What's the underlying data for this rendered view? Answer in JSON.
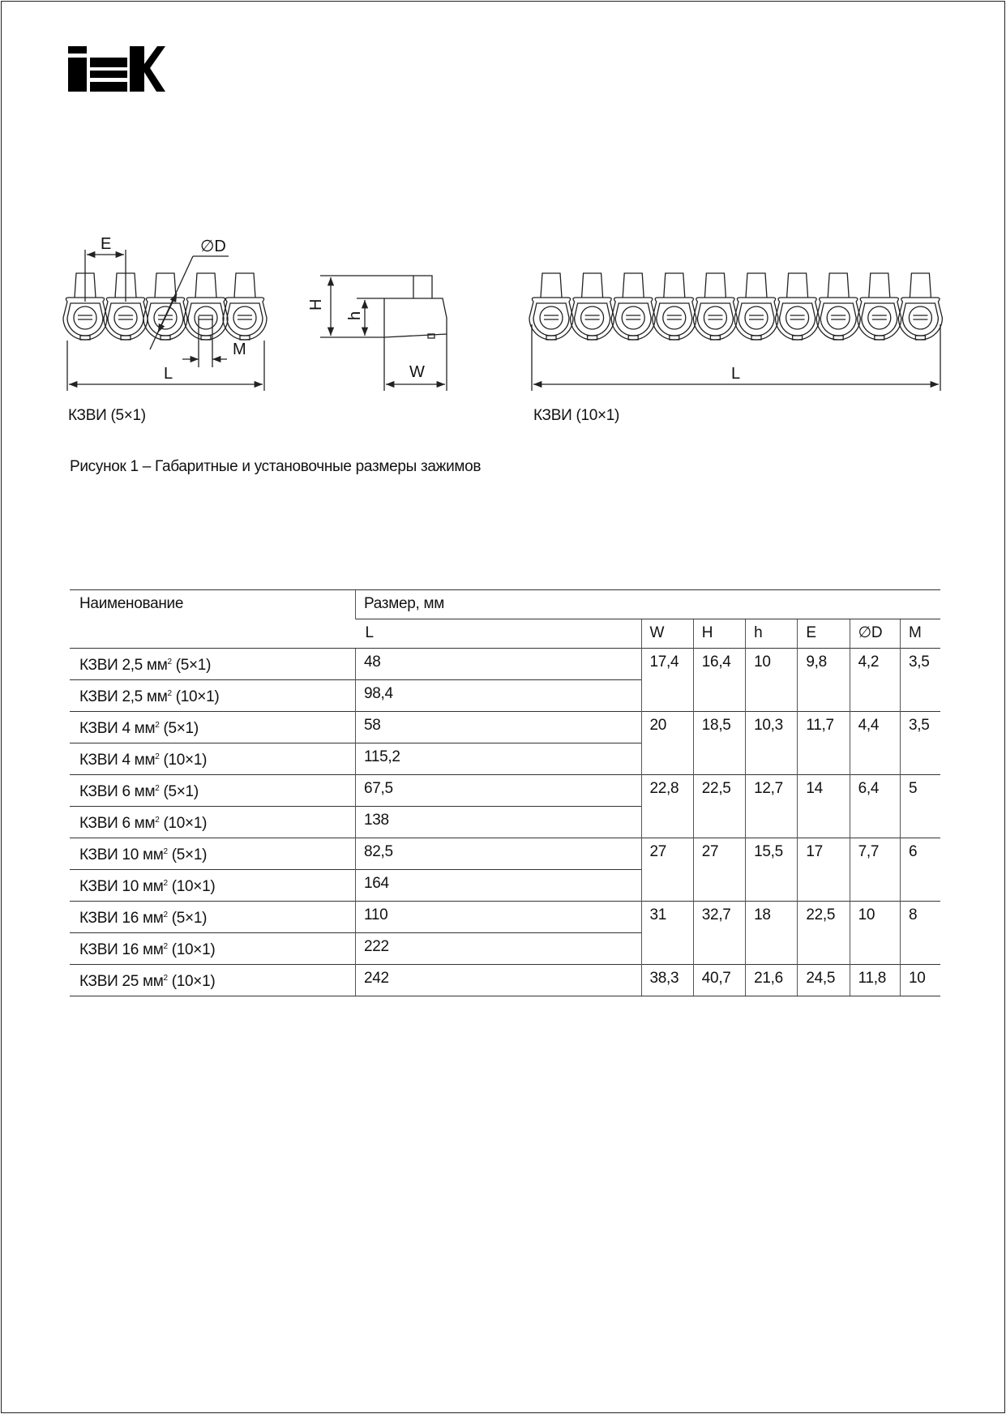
{
  "logo": {
    "text": "IEK"
  },
  "figure": {
    "labels": {
      "E": "E",
      "D": "∅D",
      "L": "L",
      "M": "M",
      "H": "H",
      "h": "h",
      "W": "W"
    },
    "left_label": "КЗВИ (5×1)",
    "right_label": "КЗВИ (10×1)",
    "caption": "Рисунок 1 – Габаритные и установочные размеры зажимов"
  },
  "table": {
    "header_name": "Наименование",
    "header_size": "Размер, мм",
    "columns": [
      "L",
      "W",
      "H",
      "h",
      "E",
      "∅D",
      "M"
    ],
    "rows": [
      {
        "name": "КЗВИ 2,5 мм",
        "sup": "2",
        "suffix": " (5×1)",
        "L": "48",
        "W": "17,4",
        "H": "16,4",
        "h": "10",
        "E": "9,8",
        "D": "4,2",
        "M": "3,5"
      },
      {
        "name": "КЗВИ 2,5 мм",
        "sup": "2",
        "suffix": " (10×1)",
        "L": "98,4"
      },
      {
        "name": "КЗВИ 4 мм",
        "sup": "2",
        "suffix": " (5×1)",
        "L": "58",
        "W": "20",
        "H": "18,5",
        "h": "10,3",
        "E": "11,7",
        "D": "4,4",
        "M": "3,5"
      },
      {
        "name": "КЗВИ 4 мм",
        "sup": "2",
        "suffix": " (10×1)",
        "L": "115,2"
      },
      {
        "name": "КЗВИ 6 мм",
        "sup": "2",
        "suffix": " (5×1)",
        "L": "67,5",
        "W": "22,8",
        "H": "22,5",
        "h": "12,7",
        "E": "14",
        "D": "6,4",
        "M": "5"
      },
      {
        "name": "КЗВИ 6 мм",
        "sup": "2",
        "suffix": " (10×1)",
        "L": "138"
      },
      {
        "name": "КЗВИ 10 мм",
        "sup": "2",
        "suffix": " (5×1)",
        "L": "82,5",
        "W": "27",
        "H": "27",
        "h": "15,5",
        "E": "17",
        "D": "7,7",
        "M": "6"
      },
      {
        "name": "КЗВИ 10 мм",
        "sup": "2",
        "suffix": " (10×1)",
        "L": "164"
      },
      {
        "name": "КЗВИ 16 мм",
        "sup": "2",
        "suffix": " (5×1)",
        "L": "110",
        "W": "31",
        "H": "32,7",
        "h": "18",
        "E": "22,5",
        "D": "10",
        "M": "8"
      },
      {
        "name": "КЗВИ 16 мм",
        "sup": "2",
        "suffix": " (10×1)",
        "L": "222"
      },
      {
        "name": "КЗВИ 25 мм",
        "sup": "2",
        "suffix": " (10×1)",
        "L": "242",
        "W": "38,3",
        "H": "40,7",
        "h": "21,6",
        "E": "24,5",
        "D": "11,8",
        "M": "10"
      }
    ]
  }
}
